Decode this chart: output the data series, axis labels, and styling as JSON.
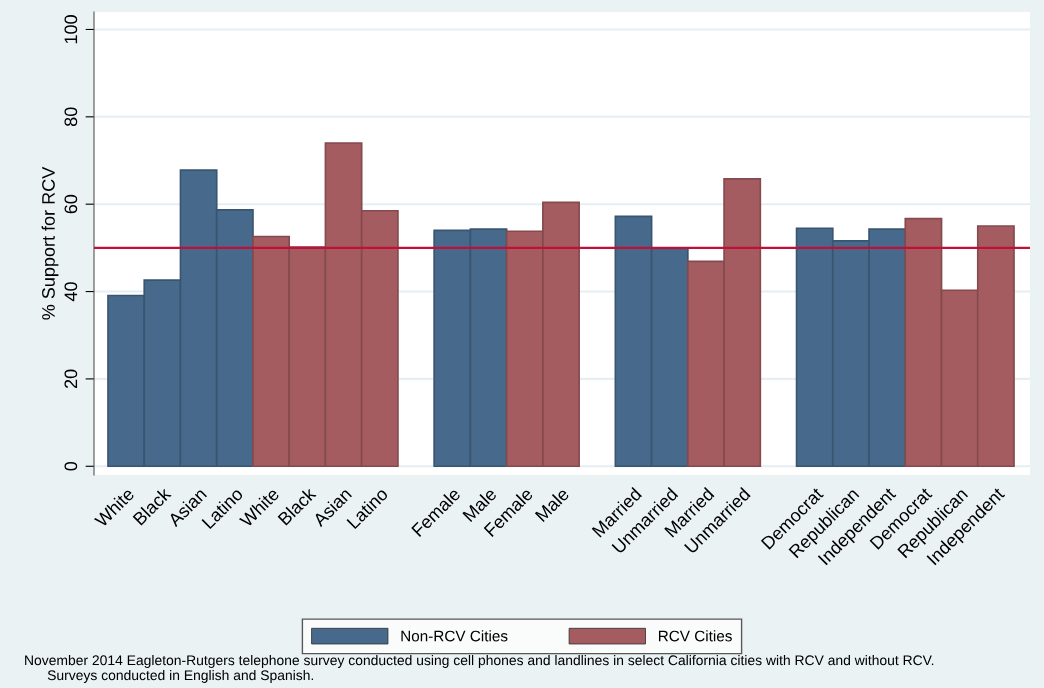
{
  "chart_data": {
    "type": "bar",
    "ylabel": "% Support for RCV",
    "categories": [
      "White",
      "Black",
      "Asian",
      "Latino",
      "White",
      "Black",
      "Asian",
      "Latino",
      null,
      "Female",
      "Male",
      "Female",
      "Male",
      null,
      "Married",
      "Unmarried",
      "Married",
      "Unmarried",
      null,
      "Democrat",
      "Republican",
      "Independent",
      "Democrat",
      "Republican",
      "Independent"
    ],
    "series": [
      {
        "name": "Non-RCV Cities",
        "color": "#476a8c",
        "values": [
          39.1,
          42.6,
          67.8,
          58.7,
          null,
          null,
          null,
          null,
          null,
          54.0,
          54.3,
          null,
          null,
          null,
          57.2,
          49.9,
          null,
          null,
          null,
          54.5,
          51.6,
          54.3,
          null,
          null,
          null
        ]
      },
      {
        "name": "RCV Cities",
        "color": "#a55c60",
        "values": [
          null,
          null,
          null,
          null,
          52.6,
          50.2,
          74.0,
          58.5,
          null,
          null,
          null,
          53.8,
          60.4,
          null,
          null,
          null,
          46.9,
          65.8,
          null,
          null,
          null,
          null,
          56.7,
          40.3,
          55.0
        ]
      }
    ],
    "ylim": [
      -2,
      104
    ],
    "yticks": [
      0,
      20,
      40,
      60,
      80,
      100
    ],
    "grid": "y",
    "legend": "bottom",
    "ref_lines": [
      {
        "axis": "y",
        "value": 50,
        "color": "#c0103a"
      }
    ],
    "annotations": [
      "November 2014 Eagleton-Rutgers telephone survey conducted using cell phones and landlines in select California cities with RCV and without RCV.\n      Surveys conducted in English and Spanish."
    ]
  }
}
